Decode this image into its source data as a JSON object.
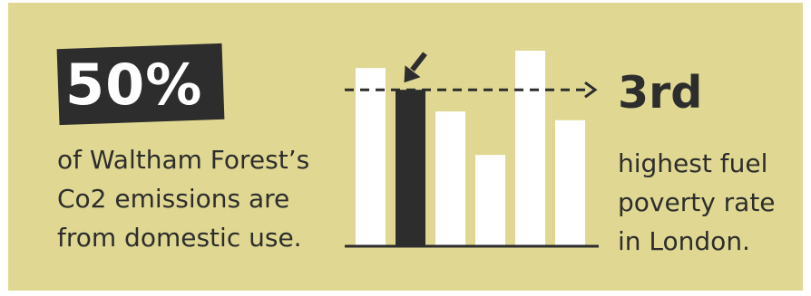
{
  "left_stat": {
    "value": "50%",
    "caption_lines": [
      "of Waltham Forest’s",
      "Co2 emissions are",
      "from domestic use."
    ]
  },
  "right_stat": {
    "value": "3rd",
    "caption_lines": [
      "highest fuel",
      "poverty rate",
      "in London."
    ]
  },
  "colors": {
    "background": "#e0d892",
    "dark": "#2d2d2d",
    "bar": "#ffffff",
    "highlight_bar": "#2d2d2d"
  },
  "chart_data": {
    "type": "bar",
    "categories": [
      "",
      "",
      "",
      "",
      "",
      ""
    ],
    "values": [
      82,
      72,
      62,
      42,
      90,
      58
    ],
    "highlight_index": 1,
    "reference_value": 72,
    "ylim": [
      0,
      100
    ],
    "grid": false,
    "arrow_icon": "diagonal-arrow-icon"
  }
}
